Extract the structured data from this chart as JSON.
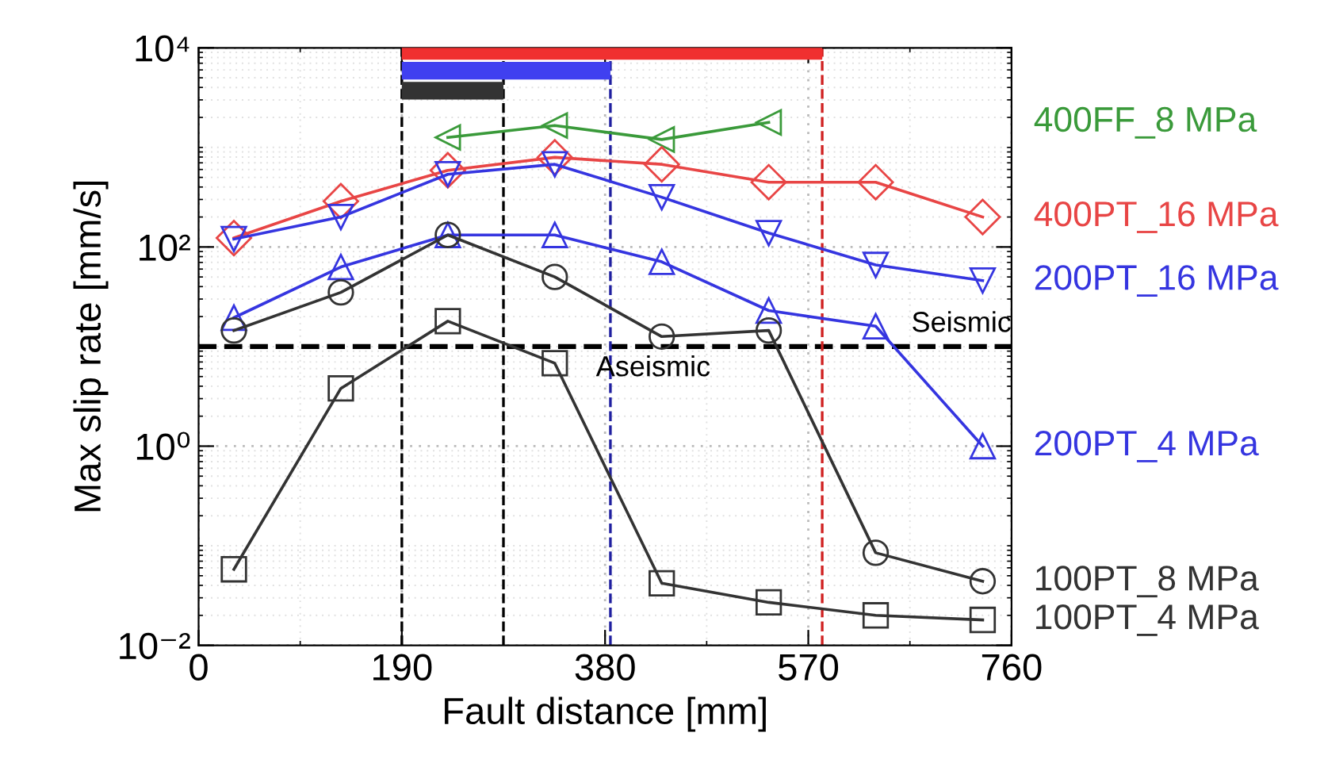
{
  "chart_data": {
    "type": "line",
    "xlabel": "Fault distance [mm]",
    "ylabel": "Max slip rate [mm/s]",
    "x": [
      33,
      133,
      233,
      333,
      433,
      533,
      633,
      733
    ],
    "log": "y",
    "xlim": [
      0,
      760
    ],
    "xticks": [
      0,
      190,
      380,
      570,
      760
    ],
    "ylim": [
      0.01,
      10000
    ],
    "yticks": [
      {
        "value": 0.01,
        "label": "10⁻²"
      },
      {
        "value": 1,
        "label": "10⁰"
      },
      {
        "value": 100,
        "label": "10²"
      },
      {
        "value": 10000,
        "label": "10⁴"
      }
    ],
    "grid": true,
    "series": [
      {
        "name": "400FF_8 MPa",
        "color": "#3a9a3a",
        "marker": "triangle_left",
        "x": [
          233,
          333,
          433,
          533
        ],
        "values": [
          1260,
          1660,
          1200,
          1780
        ]
      },
      {
        "name": "400PT_16 MPa",
        "color": "#e84545",
        "marker": "diamond",
        "values": [
          123,
          288,
          589,
          794,
          676,
          447,
          447,
          200
        ]
      },
      {
        "name": "200PT_16 MPa",
        "color": "#3535e0",
        "marker": "triangle_down",
        "values": [
          120,
          200,
          537,
          676,
          316,
          138,
          66,
          46
        ]
      },
      {
        "name": "200PT_4 MPa",
        "color": "#3535e0",
        "marker": "triangle",
        "values": [
          19.5,
          63,
          132,
          132,
          71,
          23,
          16,
          1.0
        ]
      },
      {
        "name": "100PT_8 MPa",
        "color": "#333333",
        "marker": "circle",
        "values": [
          14.5,
          35,
          132,
          50,
          12.6,
          14.5,
          0.085,
          0.044
        ]
      },
      {
        "name": "100PT_4 MPa",
        "color": "#333333",
        "marker": "square",
        "values": [
          0.058,
          3.8,
          18,
          6.8,
          0.042,
          0.027,
          0.02,
          0.018
        ]
      },
      {
        "color": "#f03030",
        "marker": "none",
        "x": [
          190,
          583
        ],
        "values": [
          9300,
          9300
        ]
      },
      {
        "color": "#4040f0",
        "marker": "none",
        "x": [
          190,
          385
        ],
        "values": [
          5900,
          5900
        ]
      },
      {
        "color": "#333333",
        "marker": "none",
        "x": [
          190,
          285
        ],
        "values": [
          3700,
          3700
        ]
      }
    ],
    "ref_lines": [
      {
        "axis": "y",
        "value": 10,
        "color": "#000000",
        "line_style": "dashed"
      },
      {
        "axis": "x",
        "value": 190,
        "color": "#000000",
        "line_style": "dashed"
      },
      {
        "axis": "x",
        "value": 285,
        "color": "#000000",
        "line_style": "dashed"
      },
      {
        "axis": "x",
        "value": 385,
        "color": "#2020a0",
        "line_style": "dashed"
      },
      {
        "axis": "x",
        "value": 583,
        "color": "#d02020",
        "line_style": "dashed"
      }
    ],
    "annotations": [
      {
        "text": "Seismic",
        "x": 760,
        "y": 10
      },
      {
        "text": "Aseismic",
        "x": 425,
        "y": 10
      }
    ]
  }
}
